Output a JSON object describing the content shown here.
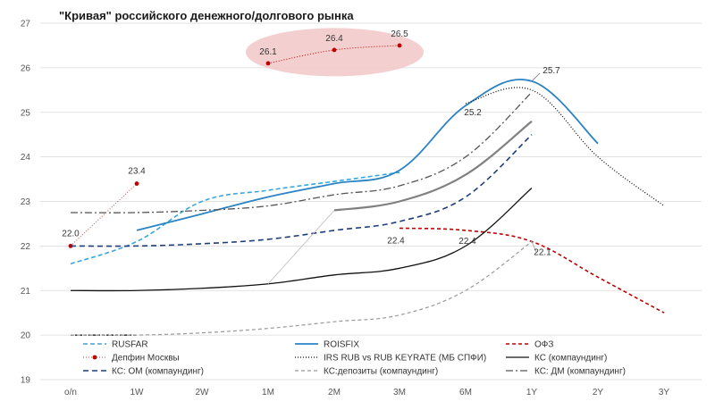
{
  "chart_data": {
    "type": "line",
    "title": "\"Кривая\" российского денежного/долгового рынка",
    "xlabel": "",
    "ylabel": "",
    "categories": [
      "o/n",
      "1W",
      "2W",
      "1M",
      "2M",
      "3M",
      "6M",
      "1Y",
      "2Y",
      "3Y"
    ],
    "ylim": [
      19,
      27
    ],
    "yticks": [
      19,
      20,
      21,
      22,
      23,
      24,
      25,
      26,
      27
    ],
    "grid": true,
    "legend_position": "bottom",
    "series": [
      {
        "name": "RUSFAR",
        "color": "#3aa6dc",
        "dash": "5,3",
        "width": 1.6,
        "points": [
          [
            0,
            21.6
          ],
          [
            1,
            22.1
          ],
          [
            2,
            23.0
          ],
          [
            3,
            23.25
          ],
          [
            4,
            23.45
          ],
          [
            5,
            23.65
          ]
        ]
      },
      {
        "name": "ROISFIX",
        "color": "#2b83c4",
        "dash": "",
        "width": 1.8,
        "points": [
          [
            1,
            22.35
          ],
          [
            2,
            22.72
          ],
          [
            3,
            23.1
          ],
          [
            4,
            23.4
          ],
          [
            5,
            23.7
          ],
          [
            6,
            25.15
          ],
          [
            7,
            25.7
          ],
          [
            8,
            24.3
          ]
        ]
      },
      {
        "name": "ОФЗ",
        "color": "#c00000",
        "dash": "4,3",
        "width": 1.6,
        "points": [
          [
            5,
            22.4
          ],
          [
            6,
            22.35
          ],
          [
            7,
            22.1
          ],
          [
            8,
            21.3
          ],
          [
            9,
            20.5
          ]
        ]
      },
      {
        "name": "Депфин Москвы",
        "color": "#c0504d",
        "dash": "1,2",
        "width": 1,
        "marker": true,
        "points": [
          [
            0,
            22.0
          ],
          [
            1,
            23.4
          ]
        ]
      },
      {
        "name": "IRS RUB vs RUB KEYRATE (МБ СПФИ)",
        "color": "#111111",
        "dash": "1,2",
        "width": 1.3,
        "points": [
          [
            6,
            25.2
          ],
          [
            7,
            25.5
          ],
          [
            8,
            24.0
          ],
          [
            9,
            22.9
          ]
        ]
      },
      {
        "name": "КС (компаундинг)",
        "color": "#111111",
        "dash": "",
        "width": 1.3,
        "points": [
          [
            0,
            21.0
          ],
          [
            1,
            21.0
          ],
          [
            2,
            21.05
          ],
          [
            3,
            21.15
          ],
          [
            4,
            21.35
          ],
          [
            5,
            21.5
          ],
          [
            6,
            22.0
          ],
          [
            7,
            23.3
          ]
        ]
      },
      {
        "name": "КС: ОМ (компаундинг)",
        "color": "#1f3d7a",
        "dash": "6,4",
        "width": 1.6,
        "points": [
          [
            0,
            22.0
          ],
          [
            1,
            22.0
          ],
          [
            2,
            22.05
          ],
          [
            3,
            22.15
          ],
          [
            4,
            22.35
          ],
          [
            5,
            22.55
          ],
          [
            6,
            23.1
          ],
          [
            7,
            24.5
          ]
        ]
      },
      {
        "name": "КС:депозиты (компаундинг)",
        "color": "#999999",
        "dash": "4,3",
        "width": 1.2,
        "points": [
          [
            0,
            20.0
          ],
          [
            1,
            20.0
          ],
          [
            2,
            20.05
          ],
          [
            3,
            20.15
          ],
          [
            4,
            20.3
          ],
          [
            5,
            20.45
          ],
          [
            6,
            21.0
          ],
          [
            7,
            22.1
          ]
        ]
      },
      {
        "name": "КС: ДМ (компаундинг)",
        "color": "#555555",
        "dash": "8,3,2,3",
        "width": 1.3,
        "points": [
          [
            0,
            22.75
          ],
          [
            1,
            22.75
          ],
          [
            2,
            22.8
          ],
          [
            3,
            22.9
          ],
          [
            4,
            23.15
          ],
          [
            5,
            23.35
          ],
          [
            6,
            24.0
          ],
          [
            7,
            25.45
          ]
        ]
      }
    ],
    "unlabeled_series": [
      {
        "color": "#808080",
        "dash": "",
        "width": 2.2,
        "points": [
          [
            4,
            22.8
          ],
          [
            5,
            23.0
          ],
          [
            6,
            23.6
          ],
          [
            7,
            24.8
          ]
        ]
      },
      {
        "color": "#000000",
        "dash": "3,2",
        "width": 1.2,
        "points": [
          [
            0,
            20.0
          ],
          [
            1,
            20.0
          ]
        ]
      }
    ],
    "highlight_series": {
      "color": "#c00000",
      "dash": "1,2",
      "width": 1,
      "marker": true,
      "points": [
        [
          3,
          26.1
        ],
        [
          4,
          26.4
        ],
        [
          5,
          26.5
        ]
      ]
    },
    "data_labels": [
      {
        "text": "22.0",
        "x": 0,
        "y": 22.0
      },
      {
        "text": "23.4",
        "x": 1,
        "y": 23.4
      },
      {
        "text": "26.1",
        "x": 3,
        "y": 26.1
      },
      {
        "text": "26.4",
        "x": 4,
        "y": 26.4
      },
      {
        "text": "26.5",
        "x": 5,
        "y": 26.5
      },
      {
        "text": "25.7",
        "x": 7,
        "y": 25.7
      },
      {
        "text": "25.2",
        "x": 6,
        "y": 25.2
      },
      {
        "text": "22.4",
        "x": 5,
        "y": 22.4
      },
      {
        "text": "22.4",
        "x": 6,
        "y": 22.35
      },
      {
        "text": "22.1",
        "x": 7,
        "y": 22.1
      }
    ]
  }
}
